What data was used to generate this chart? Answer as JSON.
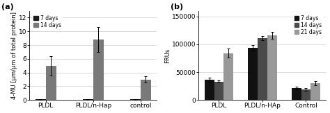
{
  "panel_a": {
    "categories": [
      "PLDL",
      "PLDL/n-Hap",
      "control"
    ],
    "series": [
      {
        "label": "7 days",
        "color": "#1a1a1a",
        "values": [
          0.08,
          0.08,
          0.08
        ],
        "errors": [
          0.04,
          0.04,
          0.04
        ]
      },
      {
        "label": "14 days",
        "color": "#797979",
        "values": [
          5.0,
          8.8,
          3.0
        ],
        "errors": [
          1.4,
          1.8,
          0.45
        ]
      }
    ],
    "ylabel": "4-MU [μm/μm of total protein]",
    "ylim": [
      0,
      13
    ],
    "yticks": [
      0,
      2,
      4,
      6,
      8,
      10,
      12
    ],
    "panel_label": "(a)"
  },
  "panel_b": {
    "categories": [
      "PLDL",
      "PLDL/n-HAp",
      "Control"
    ],
    "series": [
      {
        "label": "7 days",
        "color": "#111111",
        "values": [
          36000,
          94000,
          21000
        ],
        "errors": [
          4000,
          5000,
          2500
        ]
      },
      {
        "label": "14 days",
        "color": "#4a4a4a",
        "values": [
          33000,
          111000,
          19000
        ],
        "errors": [
          2000,
          4000,
          2000
        ]
      },
      {
        "label": "21 days",
        "color": "#999999",
        "values": [
          84000,
          116000,
          30000
        ],
        "errors": [
          8000,
          6000,
          3500
        ]
      }
    ],
    "ylabel": "FRUs",
    "ylim": [
      0,
      160000
    ],
    "yticks": [
      0,
      50000,
      100000,
      150000
    ],
    "panel_label": "(b)"
  },
  "bar_width": 0.22,
  "fontsize": 6.5,
  "fig_width": 4.74,
  "fig_height": 1.63,
  "dpi": 100
}
